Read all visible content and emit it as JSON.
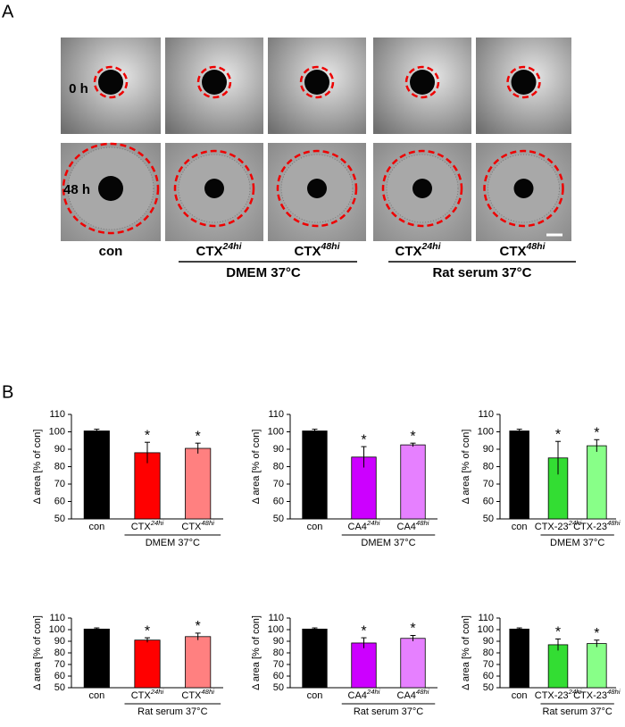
{
  "panel_labels": [
    "A",
    "B"
  ],
  "panel_a": {
    "rows": [
      "0 h",
      "48 h"
    ],
    "columns": [
      {
        "label": "con"
      },
      {
        "label": "CTX",
        "sup": "24hi"
      },
      {
        "label": "CTX",
        "sup": "48hi"
      },
      {
        "label": "CTX",
        "sup": "24hi"
      },
      {
        "label": "CTX",
        "sup": "48hi"
      }
    ],
    "groups": [
      "DMEM 37°C",
      "Rat serum 37°C"
    ]
  },
  "chart_data": [
    {
      "type": "bar",
      "y_label": "Δ area [% of con]",
      "categories": [
        "con",
        "CTX",
        "CTX"
      ],
      "category_superscripts": [
        null,
        "24hi",
        "48hi"
      ],
      "group_label": "DMEM 37°C",
      "values": [
        100.5,
        88,
        90.5
      ],
      "errors": [
        1,
        6,
        3
      ],
      "significance": [
        null,
        "*",
        "*"
      ],
      "colors": [
        "#000000",
        "#ff0000",
        "#ff8080"
      ],
      "ylim": [
        50,
        110
      ],
      "yticks": [
        50,
        60,
        70,
        80,
        90,
        100,
        110
      ]
    },
    {
      "type": "bar",
      "y_label": "Δ area [% of con]",
      "categories": [
        "con",
        "CA4",
        "CA4"
      ],
      "category_superscripts": [
        null,
        "24hi",
        "48hi"
      ],
      "group_label": "DMEM 37°C",
      "values": [
        100.5,
        85.5,
        92.5
      ],
      "errors": [
        1,
        6,
        1
      ],
      "significance": [
        null,
        "*",
        "*"
      ],
      "colors": [
        "#000000",
        "#cc00ff",
        "#e680ff"
      ],
      "ylim": [
        50,
        110
      ],
      "yticks": [
        50,
        60,
        70,
        80,
        90,
        100,
        110
      ]
    },
    {
      "type": "bar",
      "y_label": "Δ area [% of con]",
      "categories": [
        "con",
        "CTX-23",
        "CTX-23"
      ],
      "category_superscripts": [
        null,
        "24hi",
        "48hi"
      ],
      "group_label": "DMEM 37°C",
      "values": [
        100.5,
        85,
        92
      ],
      "errors": [
        1,
        9.5,
        3.5
      ],
      "significance": [
        null,
        "*",
        "*"
      ],
      "colors": [
        "#000000",
        "#33dd33",
        "#88ff88"
      ],
      "ylim": [
        50,
        110
      ],
      "yticks": [
        50,
        60,
        70,
        80,
        90,
        100,
        110
      ]
    },
    {
      "type": "bar",
      "y_label": "Δ area [% of con]",
      "categories": [
        "con",
        "CTX",
        "CTX"
      ],
      "category_superscripts": [
        null,
        "24hi",
        "48hi"
      ],
      "group_label": "Rat serum 37°C",
      "values": [
        100.5,
        91,
        94
      ],
      "errors": [
        1,
        2,
        3
      ],
      "significance": [
        null,
        "*",
        "*"
      ],
      "colors": [
        "#000000",
        "#ff0000",
        "#ff8080"
      ],
      "ylim": [
        50,
        110
      ],
      "yticks": [
        50,
        60,
        70,
        80,
        90,
        100,
        110
      ]
    },
    {
      "type": "bar",
      "y_label": "Δ area [% of con]",
      "categories": [
        "con",
        "CA4",
        "CA4"
      ],
      "category_superscripts": [
        null,
        "24hi",
        "48hi"
      ],
      "group_label": "Rat serum 37°C",
      "values": [
        100.5,
        88.5,
        92.5
      ],
      "errors": [
        1,
        4.5,
        2.5
      ],
      "significance": [
        null,
        "*",
        "*"
      ],
      "colors": [
        "#000000",
        "#cc00ff",
        "#e680ff"
      ],
      "ylim": [
        50,
        110
      ],
      "yticks": [
        50,
        60,
        70,
        80,
        90,
        100,
        110
      ]
    },
    {
      "type": "bar",
      "y_label": "Δ area [% of con]",
      "categories": [
        "con",
        "CTX-23",
        "CTX-23"
      ],
      "category_superscripts": [
        null,
        "24hi",
        "48hi"
      ],
      "group_label": "Rat serum 37°C",
      "values": [
        100.5,
        87,
        88
      ],
      "errors": [
        1,
        5,
        3
      ],
      "significance": [
        null,
        "*",
        "*"
      ],
      "colors": [
        "#000000",
        "#33dd33",
        "#88ff88"
      ],
      "ylim": [
        50,
        110
      ],
      "yticks": [
        50,
        60,
        70,
        80,
        90,
        100,
        110
      ]
    }
  ]
}
